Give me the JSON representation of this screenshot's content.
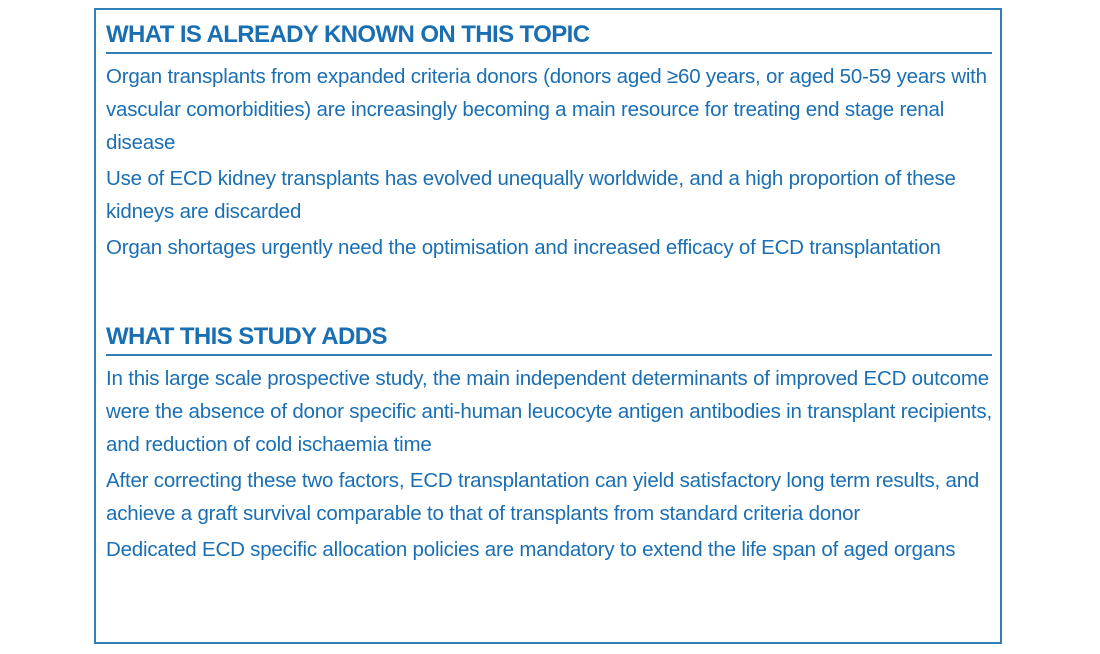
{
  "known": {
    "heading": "WHAT IS ALREADY KNOWN ON THIS TOPIC",
    "items": [
      "Organ transplants from expanded criteria donors (donors aged ≥60 years, or aged 50-59 years with vascular comorbidities) are increasingly becoming a main resource for treating end stage renal disease",
      "Use of ECD kidney transplants has evolved unequally worldwide, and a high proportion of these kidneys are discarded",
      "Organ shortages urgently need the optimisation and increased efficacy of ECD transplantation"
    ]
  },
  "adds": {
    "heading": "WHAT THIS STUDY ADDS",
    "items": [
      "In this large scale prospective study, the main independent determinants of improved ECD outcome were the absence of donor specific anti-human leucocyte antigen antibodies in transplant recipients, and reduction of cold ischaemia time",
      "After correcting these two factors, ECD transplantation can yield satisfactory long term results, and achieve a graft survival comparable to that of transplants from standard criteria donor",
      "Dedicated ECD specific allocation policies are mandatory to extend the life span of aged organs"
    ]
  },
  "colors": {
    "text": "#1a6fb3",
    "rule": "#2f7fb9"
  }
}
